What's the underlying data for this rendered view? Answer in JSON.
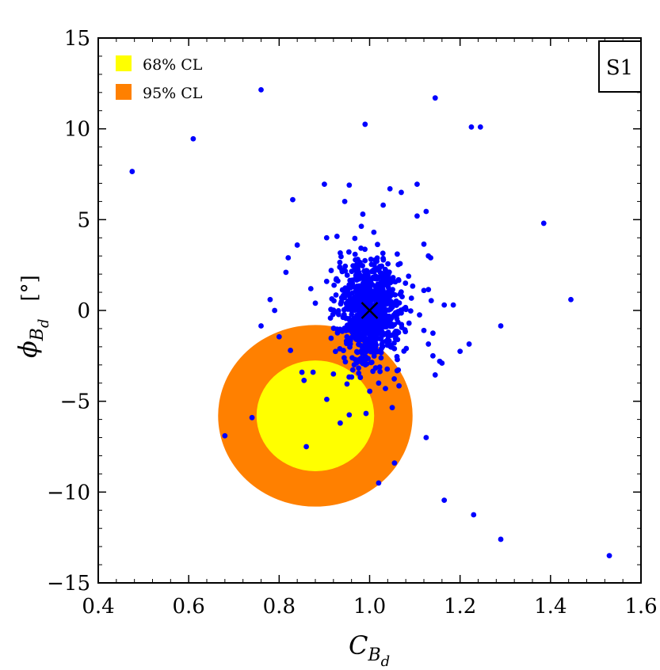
{
  "chart_data": {
    "type": "scatter",
    "title": "",
    "xlabel": {
      "main": "C",
      "sub": "B",
      "subsub": "d"
    },
    "ylabel": {
      "main": "ϕ",
      "sub": "B",
      "subsub": "d",
      "unit": "[°]"
    },
    "xlim": [
      0.4,
      1.6
    ],
    "ylim": [
      -15,
      15
    ],
    "x_ticks": [
      0.4,
      0.6,
      0.8,
      1.0,
      1.2,
      1.4,
      1.6
    ],
    "x_tick_labels": [
      "0.4",
      "0.6",
      "0.8",
      "1.0",
      "1.2",
      "1.4",
      "1.6"
    ],
    "y_ticks": [
      -15,
      -10,
      -5,
      0,
      5,
      10,
      15
    ],
    "y_tick_labels": [
      "−15",
      "−10",
      "−5",
      "0",
      "5",
      "10",
      "15"
    ],
    "scenario_label": "S1",
    "legend": [
      {
        "label": "68% CL",
        "color": "#ffff00"
      },
      {
        "label": "95% CL",
        "color": "#ff8000"
      }
    ],
    "regions": [
      {
        "name": "95% CL",
        "color": "#ff8000",
        "center": [
          0.88,
          -5.8
        ],
        "radius_x": 0.215,
        "radius_y": 5.0
      },
      {
        "name": "68% CL",
        "color": "#ffff00",
        "center": [
          0.88,
          -5.8
        ],
        "radius_x": 0.13,
        "radius_y": 3.05
      }
    ],
    "reference_point": {
      "x": 1.0,
      "y": 0.0,
      "marker": "×"
    },
    "point_color": "#0000ff",
    "cluster": {
      "center": [
        1.0,
        0.0
      ],
      "spread": [
        0.035,
        1.4
      ],
      "count": 850,
      "seed": 7
    },
    "outliers": [
      [
        0.76,
        12.15
      ],
      [
        0.61,
        9.45
      ],
      [
        0.475,
        7.65
      ],
      [
        0.99,
        10.25
      ],
      [
        1.145,
        11.7
      ],
      [
        1.225,
        10.1
      ],
      [
        1.245,
        10.1
      ],
      [
        1.385,
        4.8
      ],
      [
        1.445,
        0.6
      ],
      [
        1.29,
        -0.85
      ],
      [
        1.53,
        -13.5
      ],
      [
        1.29,
        -12.6
      ],
      [
        1.23,
        -11.25
      ],
      [
        1.165,
        -10.45
      ],
      [
        1.125,
        -7.0
      ],
      [
        1.055,
        -8.4
      ],
      [
        1.02,
        -9.5
      ],
      [
        0.74,
        -5.9
      ],
      [
        0.68,
        -6.9
      ],
      [
        0.86,
        -7.5
      ],
      [
        0.935,
        -6.2
      ],
      [
        0.955,
        -5.75
      ],
      [
        0.855,
        -3.85
      ],
      [
        0.875,
        -3.4
      ],
      [
        0.92,
        -3.5
      ],
      [
        0.95,
        -4.05
      ],
      [
        0.76,
        -0.85
      ],
      [
        0.8,
        -1.45
      ],
      [
        0.825,
        -2.2
      ],
      [
        0.83,
        6.1
      ],
      [
        0.84,
        3.6
      ],
      [
        0.82,
        2.9
      ],
      [
        0.815,
        2.1
      ],
      [
        0.9,
        6.95
      ],
      [
        0.905,
        4.0
      ],
      [
        0.945,
        6.0
      ],
      [
        0.955,
        6.9
      ],
      [
        0.985,
        5.3
      ],
      [
        1.03,
        5.8
      ],
      [
        1.045,
        6.7
      ],
      [
        1.07,
        6.5
      ],
      [
        1.105,
        6.95
      ],
      [
        1.105,
        5.2
      ],
      [
        1.125,
        5.45
      ],
      [
        1.12,
        3.65
      ],
      [
        1.13,
        3.0
      ],
      [
        1.135,
        2.9
      ],
      [
        1.12,
        1.1
      ],
      [
        1.13,
        1.15
      ],
      [
        1.165,
        0.3
      ],
      [
        1.185,
        0.3
      ],
      [
        1.12,
        -1.1
      ],
      [
        1.14,
        -1.25
      ],
      [
        1.13,
        -1.85
      ],
      [
        1.14,
        -2.5
      ],
      [
        1.155,
        -2.8
      ],
      [
        1.16,
        -2.9
      ],
      [
        1.145,
        -3.55
      ],
      [
        1.2,
        -2.25
      ],
      [
        1.22,
        -1.85
      ],
      [
        1.065,
        -4.15
      ],
      [
        1.035,
        -4.3
      ],
      [
        1.02,
        -4.0
      ],
      [
        1.05,
        -5.35
      ],
      [
        0.87,
        1.2
      ],
      [
        0.88,
        0.4
      ],
      [
        0.78,
        0.6
      ],
      [
        0.79,
        0.0
      ],
      [
        0.905,
        1.6
      ],
      [
        0.915,
        2.2
      ]
    ]
  }
}
